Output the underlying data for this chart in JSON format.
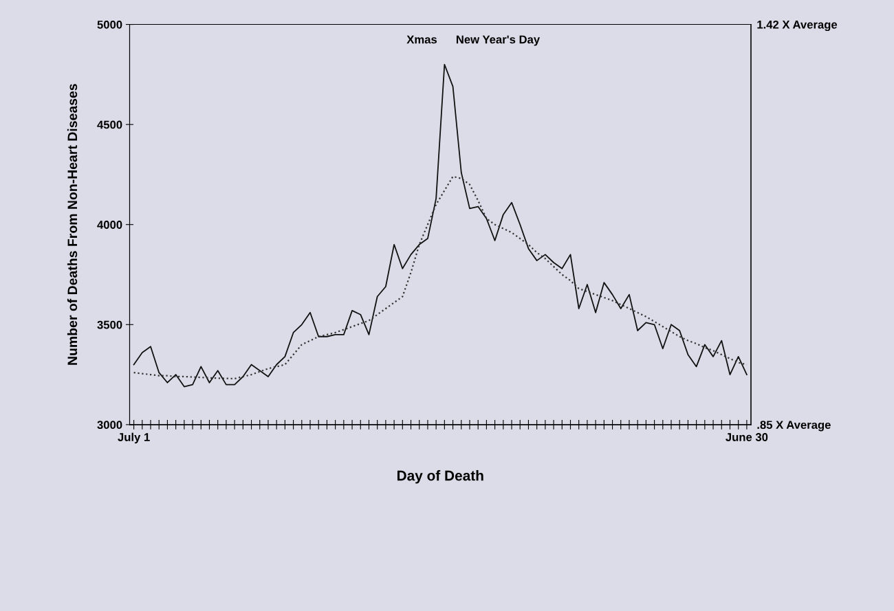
{
  "chart_data": {
    "type": "line",
    "xlabel": "Day of Death",
    "ylabel": "Number of Deaths From Non-Heart Diseases",
    "categories": [
      "July 1",
      null,
      null,
      null,
      null,
      null,
      null,
      null,
      null,
      null,
      null,
      null,
      null,
      null,
      null,
      null,
      null,
      null,
      null,
      null,
      null,
      null,
      null,
      null,
      null,
      null,
      null,
      null,
      null,
      null,
      null,
      null,
      null,
      null,
      null,
      null,
      null,
      null,
      null,
      null,
      null,
      null,
      null,
      null,
      null,
      null,
      null,
      null,
      null,
      null,
      null,
      null,
      null,
      null,
      null,
      null,
      null,
      null,
      null,
      null,
      null,
      null,
      null,
      null,
      null,
      null,
      null,
      null,
      null,
      null,
      null,
      null,
      null,
      "June 30"
    ],
    "ylim": [
      3000,
      5000
    ],
    "yticks": [
      3000,
      3500,
      4000,
      4500,
      5000
    ],
    "y2lim": [
      0.85,
      1.42
    ],
    "y2ticks": [
      {
        "value": 0.85,
        "label": ".85 X Average"
      },
      {
        "value": 1.42,
        "label": "1.42 X Average"
      }
    ],
    "series": [
      {
        "color": "#111111",
        "line_style": "solid",
        "values": [
          3300,
          3360,
          3390,
          3260,
          3210,
          3250,
          3190,
          3200,
          3290,
          3210,
          3270,
          3200,
          3200,
          3240,
          3300,
          3270,
          3240,
          3300,
          3340,
          3460,
          3500,
          3560,
          3440,
          3440,
          3450,
          3450,
          3570,
          3550,
          3450,
          3640,
          3690,
          3900,
          3780,
          3850,
          3900,
          3930,
          4130,
          4800,
          4690,
          4260,
          4080,
          4090,
          4030,
          3920,
          4050,
          4110,
          4000,
          3880,
          3820,
          3850,
          3810,
          3780,
          3850,
          3580,
          3700,
          3560,
          3710,
          3650,
          3580,
          3650,
          3470,
          3510,
          3500,
          3380,
          3500,
          3470,
          3350,
          3290,
          3400,
          3340,
          3420,
          3250,
          3340,
          3250
        ]
      },
      {
        "color": "#333333",
        "line_style": "dotted",
        "values": [
          3260,
          3255,
          3250,
          3245,
          3245,
          3240,
          3240,
          3238,
          3236,
          3234,
          3232,
          3231,
          3230,
          3240,
          3250,
          3265,
          3280,
          3290,
          3300,
          3350,
          3400,
          3420,
          3440,
          3450,
          3460,
          3475,
          3490,
          3505,
          3520,
          3550,
          3580,
          3610,
          3640,
          3760,
          3900,
          4000,
          4100,
          4170,
          4240,
          4230,
          4200,
          4120,
          4030,
          4000,
          3980,
          3960,
          3930,
          3900,
          3860,
          3830,
          3790,
          3750,
          3720,
          3680,
          3665,
          3650,
          3635,
          3620,
          3600,
          3580,
          3560,
          3540,
          3515,
          3490,
          3465,
          3440,
          3420,
          3405,
          3385,
          3370,
          3350,
          3330,
          3310,
          3300
        ]
      }
    ],
    "annotations": [
      "Xmas",
      "New Year's Day"
    ],
    "grid": false,
    "legend": false
  }
}
